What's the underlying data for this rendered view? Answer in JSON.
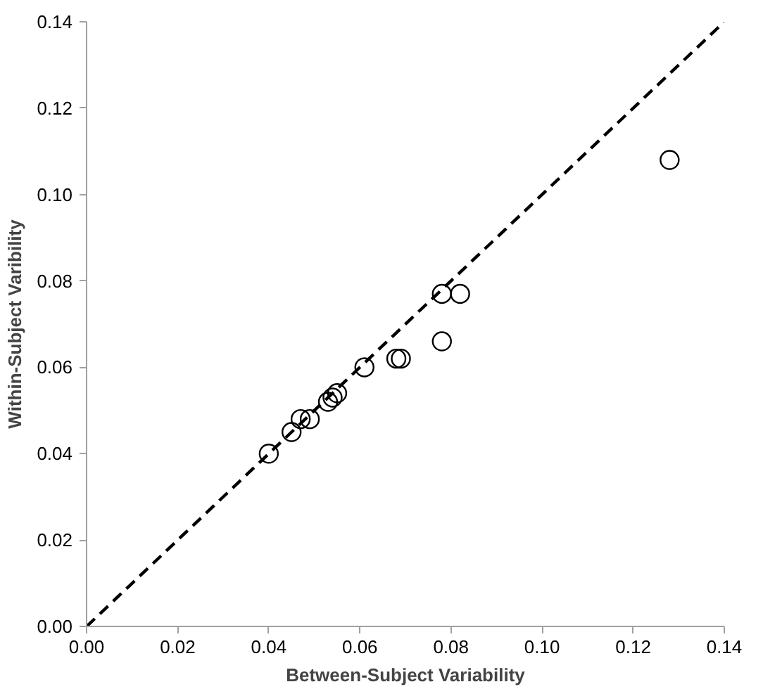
{
  "chart_data": {
    "type": "scatter",
    "xlabel": "Between-Subject Variability",
    "ylabel": "Within-Subject Varibility",
    "xlim": [
      0,
      0.14
    ],
    "ylim": [
      0,
      0.14
    ],
    "xticks": [
      {
        "value": 0,
        "label": "0.00"
      },
      {
        "value": 0.02,
        "label": "0.02"
      },
      {
        "value": 0.04,
        "label": "0.04"
      },
      {
        "value": 0.06,
        "label": "0.06"
      },
      {
        "value": 0.08,
        "label": "0.08"
      },
      {
        "value": 0.1,
        "label": "0.10"
      },
      {
        "value": 0.12,
        "label": "0.12"
      },
      {
        "value": 0.14,
        "label": "0.14"
      }
    ],
    "yticks": [
      {
        "value": 0,
        "label": "0.00"
      },
      {
        "value": 0.02,
        "label": "0.02"
      },
      {
        "value": 0.04,
        "label": "0.04"
      },
      {
        "value": 0.06,
        "label": "0.06"
      },
      {
        "value": 0.08,
        "label": "0.08"
      },
      {
        "value": 0.1,
        "label": "0.10"
      },
      {
        "value": 0.12,
        "label": "0.12"
      },
      {
        "value": 0.14,
        "label": "0.14"
      }
    ],
    "grid": false,
    "series": [
      {
        "marker": "circle",
        "color": "#000000",
        "x": [
          0.04,
          0.045,
          0.047,
          0.049,
          0.053,
          0.054,
          0.055,
          0.061,
          0.068,
          0.069,
          0.078,
          0.078,
          0.082,
          0.128
        ],
        "values": [
          0.04,
          0.045,
          0.048,
          0.048,
          0.052,
          0.053,
          0.054,
          0.06,
          0.062,
          0.062,
          0.066,
          0.077,
          0.077,
          0.108
        ]
      },
      {
        "type": "line",
        "color": "#000000",
        "line_style": "dashed",
        "x": [
          0,
          0.14
        ],
        "values": [
          0,
          0.14
        ]
      }
    ]
  }
}
